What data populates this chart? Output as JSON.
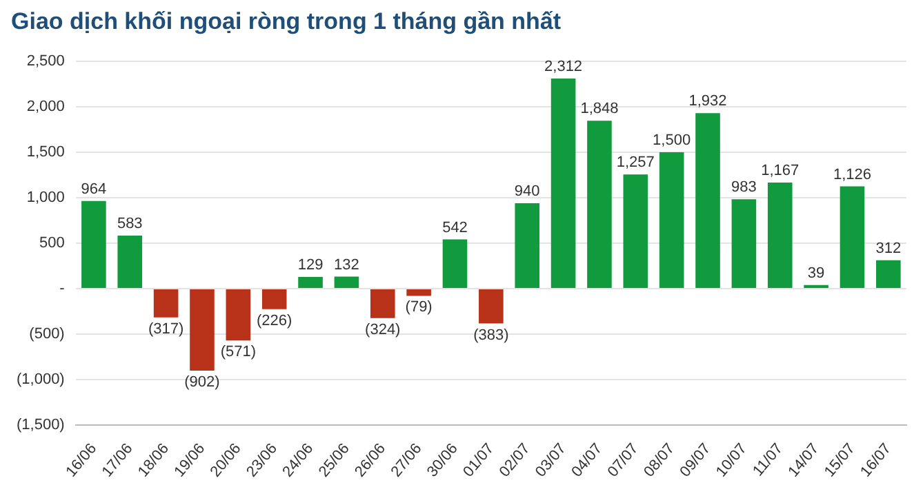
{
  "chart_data": {
    "type": "bar",
    "title": "Giao dịch khối ngoại ròng trong 1 tháng gần nhất",
    "categories": [
      "16/06",
      "17/06",
      "18/06",
      "19/06",
      "20/06",
      "23/06",
      "24/06",
      "25/06",
      "26/06",
      "27/06",
      "30/06",
      "01/07",
      "02/07",
      "03/07",
      "04/07",
      "07/07",
      "08/07",
      "09/07",
      "10/07",
      "11/07",
      "14/07",
      "15/07",
      "16/07"
    ],
    "values": [
      964,
      583,
      -317,
      -902,
      -571,
      -226,
      129,
      132,
      -324,
      -79,
      542,
      -383,
      940,
      2312,
      1848,
      1257,
      1500,
      1932,
      983,
      1167,
      39,
      1126,
      312
    ],
    "value_labels": [
      "964",
      "583",
      "(317)",
      "(902)",
      "(571)",
      "(226)",
      "129",
      "132",
      "(324)",
      "(79)",
      "542",
      "(383)",
      "940",
      "2,312",
      "1,848",
      "1,257",
      "1,500",
      "1,932",
      "983",
      "1,167",
      "39",
      "1,126",
      "312"
    ],
    "colors": [
      "#119a3e",
      "#119a3e",
      "#b8321a",
      "#b8321a",
      "#b8321a",
      "#b8321a",
      "#119a3e",
      "#119a3e",
      "#b8321a",
      "#b8321a",
      "#119a3e",
      "#b8321a",
      "#119a3e",
      "#119a3e",
      "#119a3e",
      "#119a3e",
      "#119a3e",
      "#119a3e",
      "#119a3e",
      "#119a3e",
      "#119a3e",
      "#119a3e",
      "#119a3e"
    ],
    "ylim": [
      -1500,
      2500
    ],
    "yticks": [
      {
        "value": -1500,
        "label": "(1,500)"
      },
      {
        "value": -1000,
        "label": "(1,000)"
      },
      {
        "value": -500,
        "label": "(500)"
      },
      {
        "value": 0,
        "label": "-"
      },
      {
        "value": 500,
        "label": "500"
      },
      {
        "value": 1000,
        "label": "1,000"
      },
      {
        "value": 1500,
        "label": "1,500"
      },
      {
        "value": 2000,
        "label": "2,000"
      },
      {
        "value": 2500,
        "label": "2,500"
      }
    ],
    "grid": "y",
    "legend": false
  }
}
